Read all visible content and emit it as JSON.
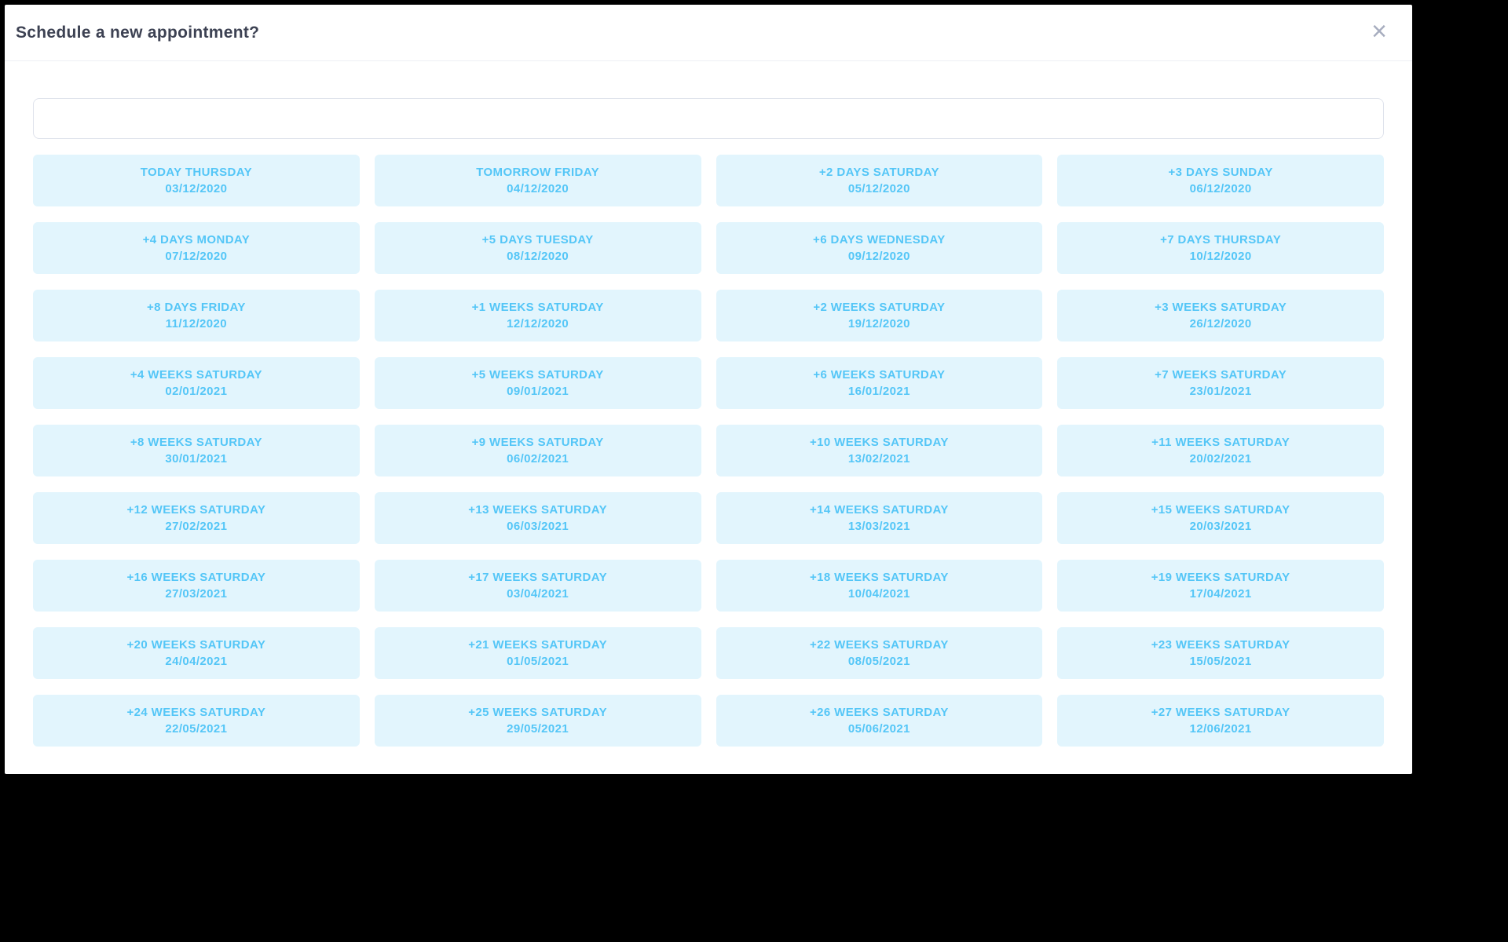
{
  "modal": {
    "title": "Schedule a new appointment?",
    "close_icon": "×"
  },
  "search": {
    "value": ""
  },
  "colors": {
    "backdrop": "#000000",
    "modal_bg": "#ffffff",
    "title_text": "#3d4253",
    "divider": "#edeff4",
    "input_border": "#dfe3ec",
    "slot_bg": "#e2f5fd",
    "slot_text": "#54c6f7",
    "close_icon": "#a7adbf"
  },
  "slots": [
    {
      "label": "TODAY THURSDAY",
      "date": "03/12/2020"
    },
    {
      "label": "TOMORROW FRIDAY",
      "date": "04/12/2020"
    },
    {
      "label": "+2 DAYS SATURDAY",
      "date": "05/12/2020"
    },
    {
      "label": "+3 DAYS SUNDAY",
      "date": "06/12/2020"
    },
    {
      "label": "+4 DAYS MONDAY",
      "date": "07/12/2020"
    },
    {
      "label": "+5 DAYS TUESDAY",
      "date": "08/12/2020"
    },
    {
      "label": "+6 DAYS WEDNESDAY",
      "date": "09/12/2020"
    },
    {
      "label": "+7 DAYS THURSDAY",
      "date": "10/12/2020"
    },
    {
      "label": "+8 DAYS FRIDAY",
      "date": "11/12/2020"
    },
    {
      "label": "+1 WEEKS SATURDAY",
      "date": "12/12/2020"
    },
    {
      "label": "+2 WEEKS SATURDAY",
      "date": "19/12/2020"
    },
    {
      "label": "+3 WEEKS SATURDAY",
      "date": "26/12/2020"
    },
    {
      "label": "+4 WEEKS SATURDAY",
      "date": "02/01/2021"
    },
    {
      "label": "+5 WEEKS SATURDAY",
      "date": "09/01/2021"
    },
    {
      "label": "+6 WEEKS SATURDAY",
      "date": "16/01/2021"
    },
    {
      "label": "+7 WEEKS SATURDAY",
      "date": "23/01/2021"
    },
    {
      "label": "+8 WEEKS SATURDAY",
      "date": "30/01/2021"
    },
    {
      "label": "+9 WEEKS SATURDAY",
      "date": "06/02/2021"
    },
    {
      "label": "+10 WEEKS SATURDAY",
      "date": "13/02/2021"
    },
    {
      "label": "+11 WEEKS SATURDAY",
      "date": "20/02/2021"
    },
    {
      "label": "+12 WEEKS SATURDAY",
      "date": "27/02/2021"
    },
    {
      "label": "+13 WEEKS SATURDAY",
      "date": "06/03/2021"
    },
    {
      "label": "+14 WEEKS SATURDAY",
      "date": "13/03/2021"
    },
    {
      "label": "+15 WEEKS SATURDAY",
      "date": "20/03/2021"
    },
    {
      "label": "+16 WEEKS SATURDAY",
      "date": "27/03/2021"
    },
    {
      "label": "+17 WEEKS SATURDAY",
      "date": "03/04/2021"
    },
    {
      "label": "+18 WEEKS SATURDAY",
      "date": "10/04/2021"
    },
    {
      "label": "+19 WEEKS SATURDAY",
      "date": "17/04/2021"
    },
    {
      "label": "+20 WEEKS SATURDAY",
      "date": "24/04/2021"
    },
    {
      "label": "+21 WEEKS SATURDAY",
      "date": "01/05/2021"
    },
    {
      "label": "+22 WEEKS SATURDAY",
      "date": "08/05/2021"
    },
    {
      "label": "+23 WEEKS SATURDAY",
      "date": "15/05/2021"
    },
    {
      "label": "+24 WEEKS SATURDAY",
      "date": "22/05/2021"
    },
    {
      "label": "+25 WEEKS SATURDAY",
      "date": "29/05/2021"
    },
    {
      "label": "+26 WEEKS SATURDAY",
      "date": "05/06/2021"
    },
    {
      "label": "+27 WEEKS SATURDAY",
      "date": "12/06/2021"
    }
  ]
}
